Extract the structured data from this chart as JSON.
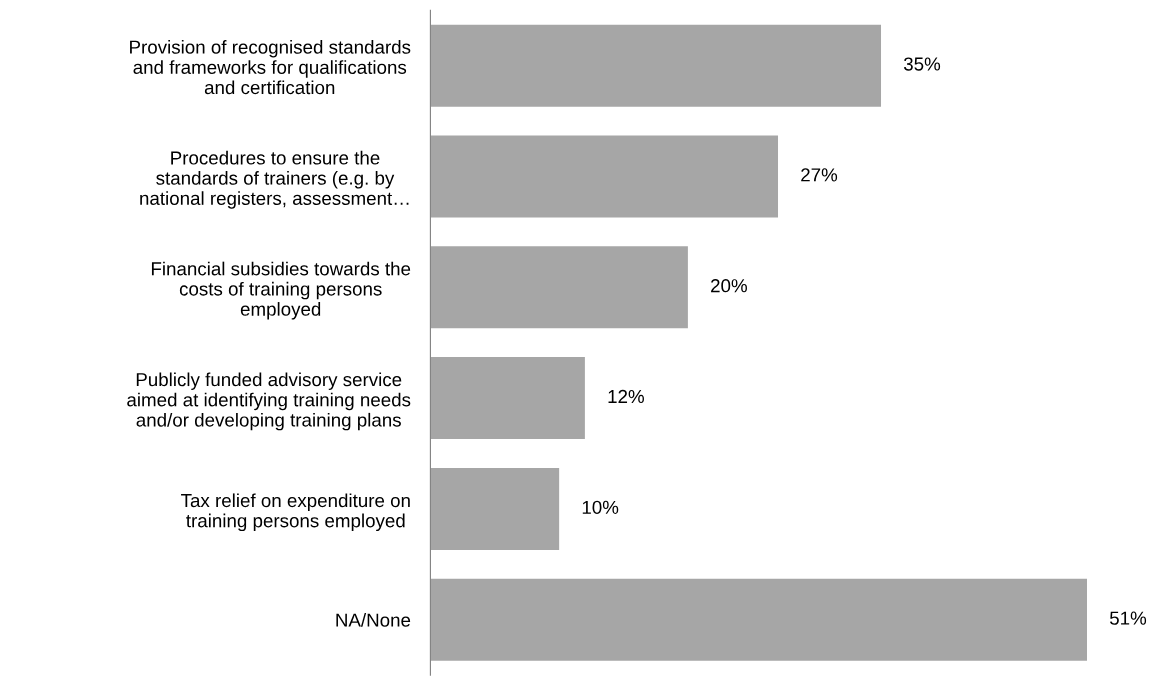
{
  "chart_data": {
    "type": "bar",
    "orientation": "horizontal",
    "categories": [
      "Provision of recognised standards\nand frameworks for qualifications\nand certification",
      "Procedures to ensure the\nstandards of trainers (e.g. by\nnational registers, assessment…",
      "Financial subsidies towards the\ncosts of training persons\nemployed",
      "Publicly funded advisory service\naimed at identifying training needs\nand/or developing training plans",
      "Tax relief on expenditure on\ntraining persons employed",
      "NA/None"
    ],
    "values": [
      35,
      27,
      20,
      12,
      10,
      51
    ],
    "value_labels": [
      "35%",
      "27%",
      "20%",
      "12%",
      "10%",
      "51%"
    ],
    "color": "#a6a6a6"
  }
}
